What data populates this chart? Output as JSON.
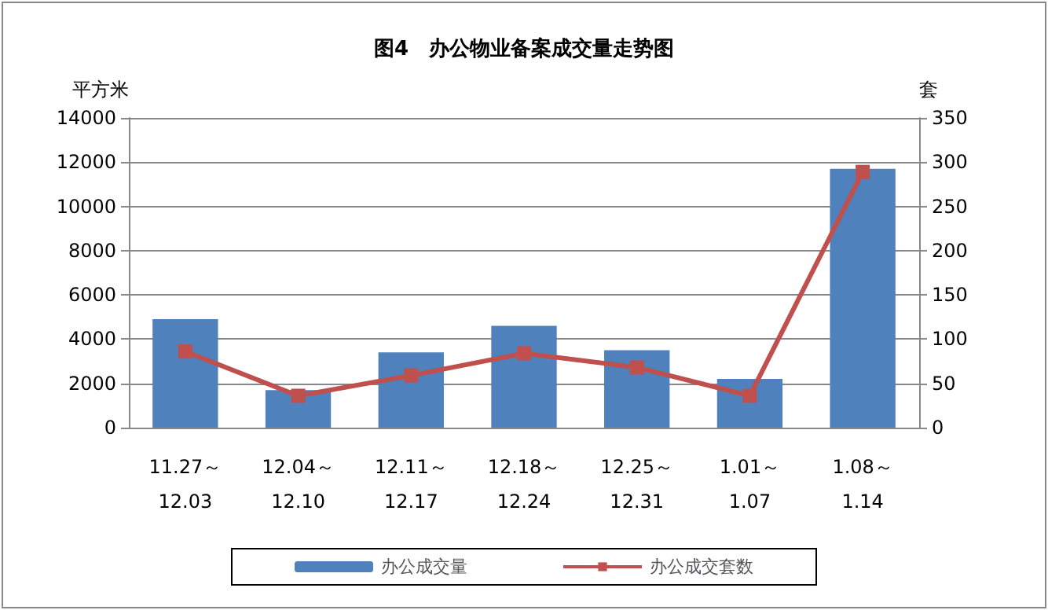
{
  "chart_data": {
    "type": "bar",
    "title": "图4　办公物业备案成交量走势图",
    "ylabel": "平方米",
    "y2label": "套",
    "categories": [
      "11.27～\n12.03",
      "12.04～\n12.10",
      "12.11～\n12.17",
      "12.18～\n12.24",
      "12.25～\n12.31",
      "1.01～\n1.07",
      "1.08～\n1.14"
    ],
    "series": [
      {
        "name": "办公成交量",
        "color": "#4f81bd",
        "values": [
          4900,
          1700,
          3400,
          4600,
          3500,
          2200,
          11700
        ]
      },
      {
        "name": "办公成交套数",
        "type": "line",
        "axis": "y2",
        "color": "#c0504d",
        "values": [
          86,
          36,
          59,
          84,
          68,
          36,
          289
        ]
      }
    ],
    "ylim": [
      0,
      14000
    ],
    "yticks": [
      0,
      2000,
      4000,
      6000,
      8000,
      10000,
      12000,
      14000
    ],
    "y2lim": [
      0,
      350
    ],
    "y2ticks": [
      0,
      50,
      100,
      150,
      200,
      250,
      300,
      350
    ],
    "grid": "y",
    "legend": "bottom",
    "marker": "square",
    "line_style": "solid"
  }
}
